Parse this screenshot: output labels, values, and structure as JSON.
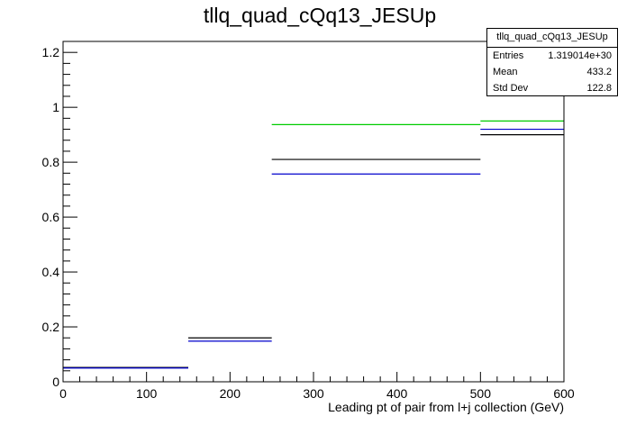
{
  "chart_data": {
    "type": "histogram",
    "title": "tllq_quad_cQq13_JESUp",
    "xlabel": "Leading pt of pair from l+j collection (GeV)",
    "ylabel": "",
    "xlim": [
      0,
      600
    ],
    "ylim": [
      0,
      1.24
    ],
    "x_ticks": [
      0,
      100,
      200,
      300,
      400,
      500,
      600
    ],
    "y_ticks": [
      0,
      0.2,
      0.4,
      0.6,
      0.8,
      1,
      1.2
    ],
    "bin_edges": [
      0,
      150,
      250,
      500,
      600
    ],
    "series": [
      {
        "color": "#000000",
        "values": [
          0.052,
          0.16,
          0.81,
          0.9
        ]
      },
      {
        "color": "#0000cc",
        "values": [
          0.05,
          0.148,
          0.757,
          0.92
        ]
      },
      {
        "color": "#00cc00",
        "values": [
          null,
          null,
          0.937,
          0.95
        ]
      }
    ],
    "grid": false,
    "stats": {
      "name": "tllq_quad_cQq13_JESUp",
      "rows": [
        {
          "label": "Entries",
          "value": "1.319014e+30"
        },
        {
          "label": "Mean",
          "value": "433.2"
        },
        {
          "label": "Std Dev",
          "value": "122.8"
        }
      ]
    }
  }
}
